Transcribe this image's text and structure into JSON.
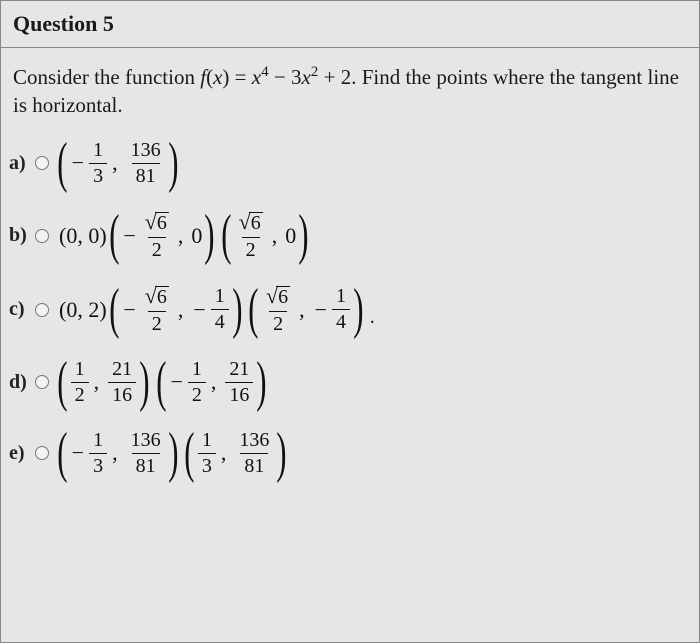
{
  "question": {
    "number_label": "Question 5",
    "prompt_prefix": "Consider the function ",
    "fn_lhs_f": "f",
    "fn_lhs_open": "(",
    "fn_lhs_x": "x",
    "fn_lhs_close": ") = ",
    "term1_var": "x",
    "term1_exp": "4",
    "minus": " − 3",
    "term2_var": "x",
    "term2_exp": "2",
    "plus2": " + 2",
    "prompt_suffix": ". Find the points where the tangent line is horizontal."
  },
  "labels": {
    "a": "a)",
    "b": "b)",
    "c": "c)",
    "d": "d)",
    "e": "e)"
  },
  "parens": {
    "open": "(",
    "close": ")"
  },
  "sym": {
    "neg": "−",
    "comma": ",",
    "dot": ".",
    "sqrt": "√"
  },
  "a": {
    "f1": {
      "num": "1",
      "den": "3"
    },
    "f2": {
      "num": "136",
      "den": "81"
    }
  },
  "b": {
    "p0": "(0, 0)",
    "sqrt_arg": "6",
    "den": "2",
    "zero": "0"
  },
  "c": {
    "p0": "(0, 2)",
    "sqrt_arg": "6",
    "den": "2",
    "f2": {
      "num": "1",
      "den": "4"
    }
  },
  "d": {
    "f1": {
      "num": "1",
      "den": "2"
    },
    "f2": {
      "num": "21",
      "den": "16"
    }
  },
  "e": {
    "f1": {
      "num": "1",
      "den": "3"
    },
    "f2": {
      "num": "136",
      "den": "81"
    }
  },
  "style": {
    "bg": "#e6e6e6",
    "text": "#1a1a1a",
    "border": "#888"
  }
}
